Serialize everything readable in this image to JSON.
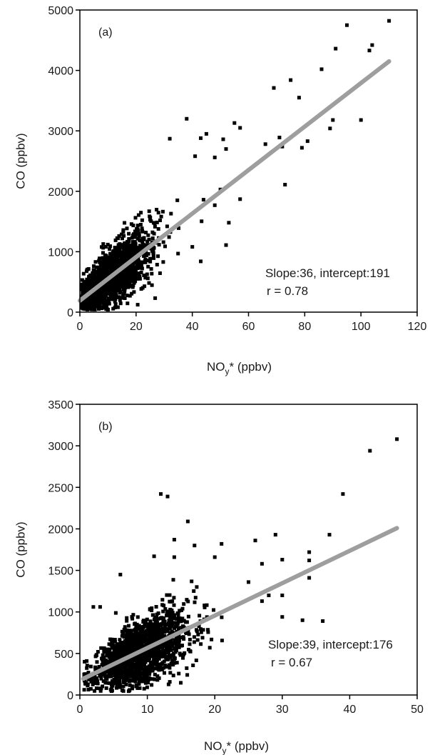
{
  "chart_data": [
    {
      "type": "scatter",
      "panel_label": "(a)",
      "xlabel_main": "NO",
      "xlabel_sub": "y",
      "xlabel_rest": "* (ppbv)",
      "ylabel": "CO (ppbv)",
      "xlim": [
        0,
        120
      ],
      "ylim": [
        0,
        5000
      ],
      "xticks": [
        "0",
        "20",
        "40",
        "60",
        "80",
        "100",
        "120"
      ],
      "yticks": [
        "0",
        "1000",
        "2000",
        "3000",
        "4000",
        "5000"
      ],
      "annotation_line1": "Slope:36, intercept:191",
      "annotation_line2": "r = 0.78",
      "fit": {
        "slope": 36,
        "intercept": 191,
        "x_range": [
          0,
          110
        ],
        "color": "#9e9e9e"
      },
      "point_color": "#000000",
      "cloud": {
        "n": 1500,
        "x_center": 12,
        "x_spread": 9,
        "x_max": 58,
        "noise": 320
      },
      "points": [
        [
          110,
          4820
        ],
        [
          95,
          4750
        ],
        [
          104,
          4420
        ],
        [
          103,
          4330
        ],
        [
          91,
          4360
        ],
        [
          86,
          4020
        ],
        [
          75,
          3840
        ],
        [
          69,
          3710
        ],
        [
          78,
          3550
        ],
        [
          90,
          3180
        ],
        [
          89,
          3040
        ],
        [
          100,
          3180
        ],
        [
          81,
          2830
        ],
        [
          79,
          2720
        ],
        [
          71,
          2890
        ],
        [
          72,
          2740
        ],
        [
          66,
          2780
        ],
        [
          73,
          2110
        ],
        [
          38,
          3200
        ],
        [
          45,
          2950
        ],
        [
          43,
          2880
        ],
        [
          32,
          2870
        ],
        [
          55,
          3130
        ],
        [
          57,
          3050
        ],
        [
          51,
          2860
        ],
        [
          52,
          2700
        ],
        [
          48,
          2560
        ],
        [
          50,
          2030
        ],
        [
          48,
          1770
        ],
        [
          57,
          1870
        ],
        [
          44,
          1860
        ],
        [
          53,
          1480
        ],
        [
          52,
          1110
        ],
        [
          43,
          840
        ],
        [
          40,
          1080
        ],
        [
          41,
          2580
        ]
      ]
    },
    {
      "type": "scatter",
      "panel_label": "(b)",
      "xlabel_main": "NO",
      "xlabel_sub": "y",
      "xlabel_rest": "* (ppbv)",
      "ylabel": "CO (ppbv)",
      "xlim": [
        0,
        50
      ],
      "ylim": [
        0,
        3500
      ],
      "xticks": [
        "0",
        "10",
        "20",
        "30",
        "40",
        "50"
      ],
      "yticks": [
        "0",
        "500",
        "1000",
        "1500",
        "2000",
        "2500",
        "3000",
        "3500"
      ],
      "annotation_line1": "Slope:39, intercept:176",
      "annotation_line2": "r = 0.67",
      "fit": {
        "slope": 39,
        "intercept": 176,
        "x_range": [
          0.5,
          47
        ],
        "color": "#9e9e9e"
      },
      "point_color": "#000000",
      "cloud": {
        "n": 1500,
        "x_center": 9,
        "x_spread": 4.5,
        "x_max": 26,
        "noise": 220
      },
      "points": [
        [
          47,
          3080
        ],
        [
          43,
          2940
        ],
        [
          39,
          2420
        ],
        [
          12,
          2420
        ],
        [
          13,
          2390
        ],
        [
          16,
          2090
        ],
        [
          37,
          1930
        ],
        [
          29,
          1930
        ],
        [
          30,
          1630
        ],
        [
          34,
          1720
        ],
        [
          34,
          1620
        ],
        [
          34,
          1410
        ],
        [
          30,
          1200
        ],
        [
          30,
          940
        ],
        [
          33,
          900
        ],
        [
          36,
          890
        ],
        [
          28,
          1200
        ],
        [
          27,
          1130
        ],
        [
          25,
          1360
        ],
        [
          26,
          1860
        ],
        [
          27,
          1580
        ],
        [
          21,
          1820
        ],
        [
          17,
          1800
        ],
        [
          20,
          1660
        ],
        [
          14,
          1870
        ],
        [
          14,
          1660
        ],
        [
          11,
          1670
        ],
        [
          6,
          1450
        ],
        [
          3,
          1060
        ],
        [
          2,
          1060
        ]
      ]
    }
  ]
}
